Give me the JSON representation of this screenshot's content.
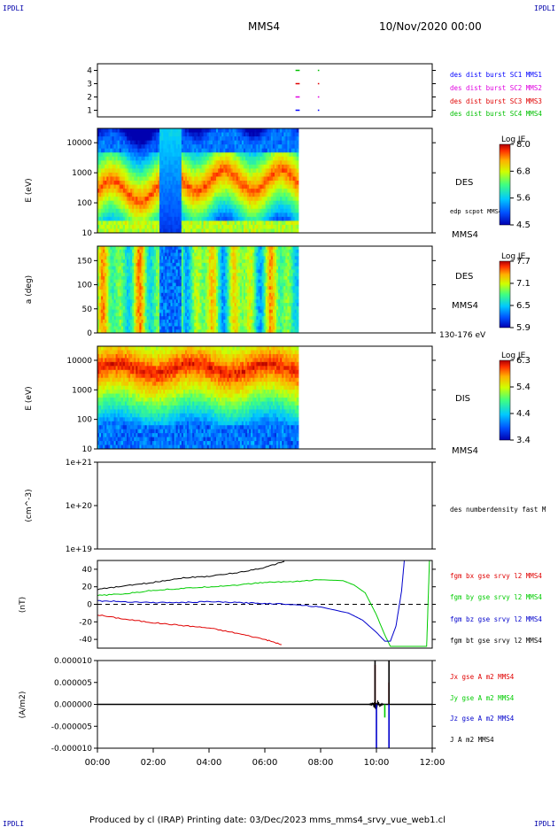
{
  "header": {
    "corner_tl": "IPDLI",
    "corner_tr": "IPDLI",
    "corner_bl": "IPDLI",
    "corner_br": "IPDLI",
    "spacecraft": "MMS4",
    "date": "10/Nov/2020 00:00"
  },
  "footer": {
    "text": "Produced by cl (IRAP)   Printing date: 03/Dec/2023   mms_mms4_srvy_vue_web1.cl"
  },
  "colors": {
    "mms1": "#0000ff",
    "mms2": "#e000e0",
    "mms3": "#e00000",
    "mms4": "#00c000",
    "bx": "#e00000",
    "by": "#00cc00",
    "bz": "#0000cc",
    "bt": "#000000"
  },
  "chart_data": [
    {
      "type": "line",
      "panel": "burst",
      "yticks": [
        "4",
        "3",
        "2",
        "1"
      ],
      "ylim": [
        0.5,
        4.5
      ],
      "series": [
        {
          "name": "des dist burst SC1 MMS1",
          "y": 1,
          "segments": [
            [
              7.1,
              7.25
            ],
            [
              7.9,
              7.95
            ]
          ]
        },
        {
          "name": "des dist burst SC2 MMS2",
          "y": 2,
          "segments": [
            [
              7.1,
              7.25
            ],
            [
              7.9,
              7.95
            ]
          ]
        },
        {
          "name": "des dist burst SC3 MMS3",
          "y": 3,
          "segments": [
            [
              7.1,
              7.25
            ],
            [
              7.9,
              7.95
            ]
          ]
        },
        {
          "name": "des dist burst SC4 MMS4",
          "y": 4,
          "segments": [
            [
              7.1,
              7.25
            ],
            [
              7.9,
              7.95
            ]
          ]
        }
      ]
    },
    {
      "type": "heatmap",
      "panel": "des-energy",
      "ylabel": "E (eV)",
      "yscale": "log",
      "yticks": [
        "10000",
        "1000",
        "100",
        "10"
      ],
      "ylim": [
        10,
        30000
      ],
      "data_end_hour": 7.2,
      "label": "DES",
      "sublabel": "edp scpot MMS4",
      "right_label": "MMS4",
      "colorbar": {
        "title": "Log JE",
        "ticks": [
          "8.0",
          "6.8",
          "5.6",
          "4.5"
        ],
        "range": [
          4.5,
          8.0
        ]
      }
    },
    {
      "type": "heatmap",
      "panel": "des-pitch",
      "ylabel": "a (deg)",
      "yticks": [
        "150",
        "100",
        "50",
        "0"
      ],
      "ylim": [
        0,
        180
      ],
      "data_end_hour": 7.2,
      "label": "DES",
      "sublabel": "MMS4",
      "right_label": "130-176 eV",
      "colorbar": {
        "title": "Log JE",
        "ticks": [
          "7.7",
          "7.1",
          "6.5",
          "5.9"
        ],
        "range": [
          5.9,
          7.7
        ]
      }
    },
    {
      "type": "heatmap",
      "panel": "dis-energy",
      "ylabel": "E (eV)",
      "yscale": "log",
      "yticks": [
        "10000",
        "1000",
        "100",
        "10"
      ],
      "ylim": [
        10,
        30000
      ],
      "data_end_hour": 7.2,
      "label": "DIS",
      "right_label": "MMS4",
      "colorbar": {
        "title": "Log JE",
        "ticks": [
          "6.3",
          "5.4",
          "4.4",
          "3.4"
        ],
        "range": [
          3.4,
          6.3
        ]
      }
    },
    {
      "type": "line",
      "panel": "density",
      "ylabel": "(cm^-3)",
      "yscale": "log",
      "yticks": [
        "1e+21",
        "1e+20",
        "1e+19"
      ],
      "ylim": [
        1e+19,
        1e+21
      ],
      "series": [
        {
          "name": "des numberdensity fast M",
          "values": []
        }
      ]
    },
    {
      "type": "line",
      "panel": "magnetic-field",
      "ylabel": "(nT)",
      "yticks": [
        "40",
        "20",
        "0",
        "-20",
        "-40"
      ],
      "ylim": [
        -50,
        50
      ],
      "series": [
        {
          "name": "fgm bx gse srvy l2 MMS4",
          "x": [
            0,
            1,
            2,
            3,
            4,
            5,
            6,
            6.6
          ],
          "y": [
            -12,
            -17,
            -21,
            -24,
            -27,
            -33,
            -40,
            -46
          ]
        },
        {
          "name": "fgm by gse srvy l2 MMS4",
          "x": [
            0,
            1,
            2,
            3,
            4,
            5,
            6,
            7,
            8,
            8.8,
            9.2,
            9.6,
            10.0,
            10.3,
            10.5,
            11.8,
            11.85,
            11.9,
            12.0
          ],
          "y": [
            10,
            12,
            16,
            18,
            20,
            22,
            25,
            26,
            28,
            27,
            22,
            13,
            -12,
            -35,
            -48,
            -48,
            0,
            50,
            50
          ]
        },
        {
          "name": "fgm bz gse srvy l2 MMS4",
          "x": [
            0,
            1,
            2,
            3,
            4,
            5,
            6,
            7,
            8,
            9,
            9.5,
            10,
            10.3,
            10.5,
            10.7,
            10.9,
            11.0
          ],
          "y": [
            4,
            3,
            2,
            2,
            3,
            2,
            1,
            0,
            -3,
            -10,
            -18,
            -32,
            -42,
            -42,
            -25,
            15,
            50
          ]
        },
        {
          "name": "fgm bt gse srvy l2 MMS4",
          "x": [
            0,
            1,
            2,
            3,
            4,
            5,
            6,
            6.7
          ],
          "y": [
            17,
            21,
            25,
            30,
            32,
            36,
            42,
            49
          ]
        }
      ]
    },
    {
      "type": "line",
      "panel": "current-density",
      "ylabel": "(A/m2)",
      "yticks": [
        "0.000010",
        "0.000005",
        "0.000000",
        "-0.000005",
        "-0.000010"
      ],
      "ylim": [
        -1e-05,
        1e-05
      ],
      "series": [
        {
          "name": "Jx gse A m2 MMS4",
          "spikes": [
            [
              9.95,
              9e-06
            ],
            [
              10.45,
              5e-06
            ]
          ]
        },
        {
          "name": "Jy gse A m2 MMS4",
          "spikes": [
            [
              10.3,
              -3e-06
            ]
          ]
        },
        {
          "name": "Jz gse A m2 MMS4",
          "spikes": [
            [
              10.0,
              -1e-05
            ],
            [
              10.45,
              -1e-05
            ]
          ]
        },
        {
          "name": "J A m2 MMS4",
          "spikes": [
            [
              9.95,
              1e-05
            ],
            [
              10.45,
              1e-05
            ]
          ]
        }
      ]
    }
  ],
  "xaxis": {
    "ticks": [
      "00:00",
      "02:00",
      "04:00",
      "06:00",
      "08:00",
      "10:00",
      "12:00"
    ],
    "range_hours": [
      0,
      12
    ]
  }
}
